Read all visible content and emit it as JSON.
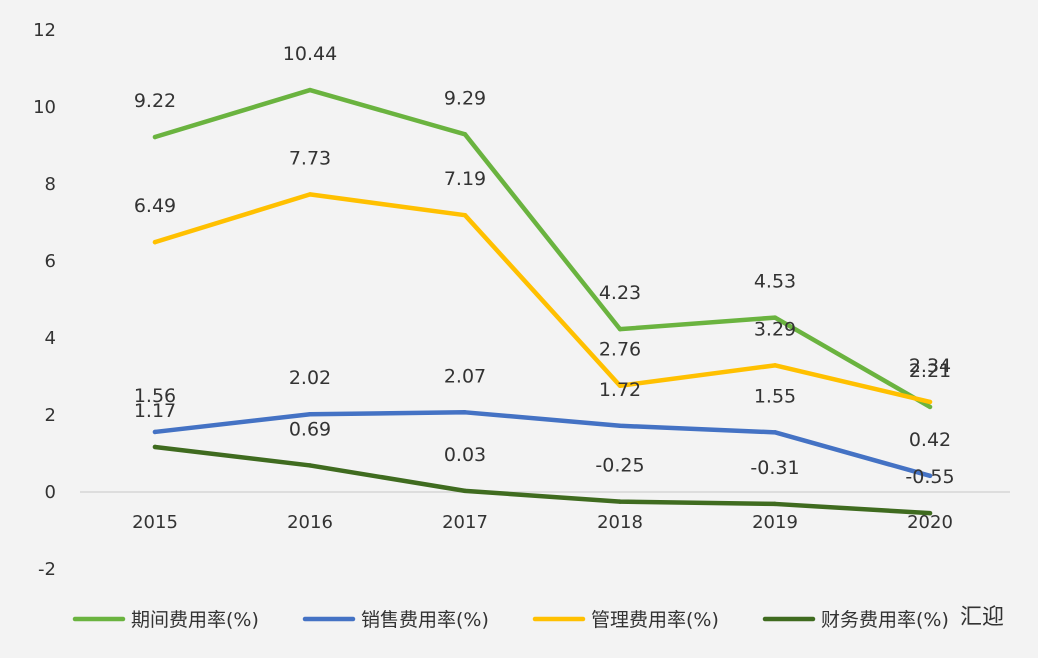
{
  "chart_data": {
    "type": "line",
    "categories": [
      "2015",
      "2016",
      "2017",
      "2018",
      "2019",
      "2020"
    ],
    "ylim": [
      -2,
      12
    ],
    "yticks": [
      "12",
      "10",
      "8",
      "6",
      "4",
      "2",
      "0",
      "-2"
    ],
    "ytick_values": [
      12,
      10,
      8,
      6,
      4,
      2,
      0,
      -2
    ],
    "grid": false,
    "legend_position": "bottom",
    "series": [
      {
        "name": "期间费用率(%)",
        "color": "#6ab33f",
        "values": [
          9.22,
          10.44,
          9.29,
          4.23,
          4.53,
          2.21
        ],
        "labels": [
          "9.22",
          "10.44",
          "9.29",
          "4.23",
          "4.53",
          "2.21"
        ]
      },
      {
        "name": "销售费用率(%)",
        "color": "#4472c4",
        "values": [
          1.56,
          2.02,
          2.07,
          1.72,
          1.55,
          0.42
        ],
        "labels": [
          "1.56",
          "2.02",
          "2.07",
          "1.72",
          "1.55",
          "0.42"
        ]
      },
      {
        "name": "管理费用率(%)",
        "color": "#ffc000",
        "values": [
          6.49,
          7.73,
          7.19,
          2.76,
          3.29,
          2.34
        ],
        "labels": [
          "6.49",
          "7.73",
          "7.19",
          "2.76",
          "3.29",
          "2.34"
        ]
      },
      {
        "name": "财务费用率(%)",
        "color": "#3f6b1f",
        "values": [
          1.17,
          0.69,
          0.03,
          -0.25,
          -0.31,
          -0.55
        ],
        "labels": [
          "1.17",
          "0.69",
          "0.03",
          "-0.25",
          "-0.31",
          "-0.55"
        ]
      }
    ]
  },
  "watermark": {
    "text": "汇迎"
  }
}
